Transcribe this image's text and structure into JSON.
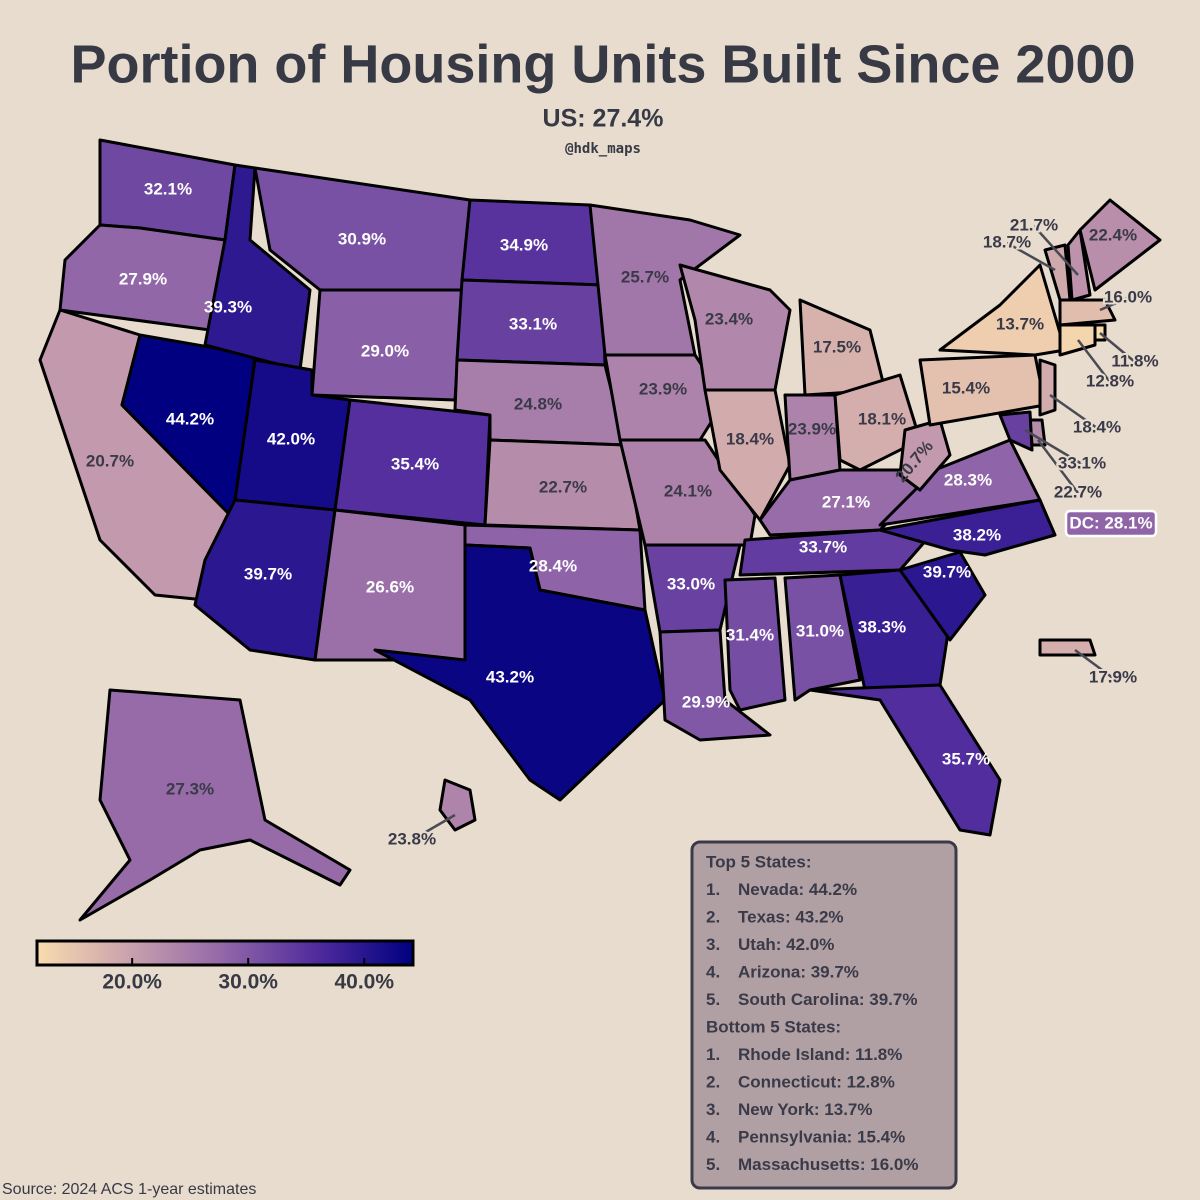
{
  "title": "Portion of Housing Units Built Since 2000",
  "subtitle": "US: 27.4%",
  "credit": "@hdk_maps",
  "source": "Source: 2024 ACS 1-year estimates",
  "colorbar": {
    "range": [
      11.8,
      44.2
    ],
    "colormap": [
      "#f9dcae",
      "#c9a0ad",
      "#9166a8",
      "#4e2a9c",
      "#000080"
    ],
    "ticks": [
      {
        "value": 20,
        "label": "20.0%"
      },
      {
        "value": 30,
        "label": "30.0%"
      },
      {
        "value": 40,
        "label": "40.0%"
      }
    ]
  },
  "states": [
    {
      "value": 32.1,
      "label": "32.1%"
    },
    {
      "value": 27.9,
      "label": "27.9%"
    },
    {
      "value": 20.7,
      "label": "20.7%"
    },
    {
      "value": 44.2,
      "label": "44.2%"
    },
    {
      "value": 39.3,
      "label": "39.3%"
    },
    {
      "value": 30.9,
      "label": "30.9%"
    },
    {
      "value": 29.0,
      "label": "29.0%"
    },
    {
      "value": 42.0,
      "label": "42.0%"
    },
    {
      "value": 35.4,
      "label": "35.4%"
    },
    {
      "value": 39.7,
      "label": "39.7%"
    },
    {
      "value": 26.6,
      "label": "26.6%"
    },
    {
      "value": 34.9,
      "label": "34.9%"
    },
    {
      "value": 33.1,
      "label": "33.1%"
    },
    {
      "value": 24.8,
      "label": "24.8%"
    },
    {
      "value": 22.7,
      "label": "22.7%"
    },
    {
      "value": 28.4,
      "label": "28.4%"
    },
    {
      "value": 43.2,
      "label": "43.2%"
    },
    {
      "value": 25.7,
      "label": "25.7%"
    },
    {
      "value": 23.9,
      "label": "23.9%"
    },
    {
      "value": 24.1,
      "label": "24.1%"
    },
    {
      "value": 33.0,
      "label": "33.0%"
    },
    {
      "value": 29.9,
      "label": "29.9%"
    },
    {
      "value": 23.4,
      "label": "23.4%"
    },
    {
      "value": 18.4,
      "label": "18.4%"
    },
    {
      "value": 17.5,
      "label": "17.5%"
    },
    {
      "value": 23.9,
      "label": "23.9%"
    },
    {
      "value": 18.1,
      "label": "18.1%"
    },
    {
      "value": 27.1,
      "label": "27.1%"
    },
    {
      "value": 33.7,
      "label": "33.7%"
    },
    {
      "value": 31.4,
      "label": "31.4%"
    },
    {
      "value": 31.0,
      "label": "31.0%"
    },
    {
      "value": 38.3,
      "label": "38.3%"
    },
    {
      "value": 35.7,
      "label": "35.7%"
    },
    {
      "value": 39.7,
      "label": "39.7%"
    },
    {
      "value": 38.2,
      "label": "38.2%"
    },
    {
      "value": 28.3,
      "label": "28.3%"
    },
    {
      "value": 20.7,
      "label": "20.7%"
    },
    {
      "value": 15.4,
      "label": "15.4%"
    },
    {
      "value": 13.7,
      "label": "13.7%"
    },
    {
      "value": 18.7,
      "label": "18.7%"
    },
    {
      "value": 21.7,
      "label": "21.7%"
    },
    {
      "value": 22.4,
      "label": "22.4%"
    },
    {
      "value": 16.0,
      "label": "16.0%"
    },
    {
      "value": 11.8,
      "label": "11.8%"
    },
    {
      "value": 12.8,
      "label": "12.8%"
    },
    {
      "value": 18.4,
      "label": "18.4%"
    },
    {
      "value": 22.7,
      "label": "22.7%"
    },
    {
      "value": 33.1,
      "label": "33.1%"
    },
    {
      "value": 27.3,
      "label": "27.3%"
    },
    {
      "value": 23.8,
      "label": "23.8%"
    },
    {
      "value": 17.9,
      "label": "17.9%"
    }
  ],
  "dc": {
    "value": 28.1,
    "label": "DC: 28.1%"
  },
  "top": {
    "heading": "Top 5 States:",
    "items": [
      {
        "rank": "1.",
        "text": "Nevada: 44.2%"
      },
      {
        "rank": "2.",
        "text": "Texas: 43.2%"
      },
      {
        "rank": "3.",
        "text": "Utah: 42.0%"
      },
      {
        "rank": "4.",
        "text": "Arizona: 39.7%"
      },
      {
        "rank": "5.",
        "text": "South Carolina: 39.7%"
      }
    ]
  },
  "bottom": {
    "heading": "Bottom 5 States:",
    "items": [
      {
        "rank": "1.",
        "text": "Rhode Island: 11.8%"
      },
      {
        "rank": "2.",
        "text": "Connecticut: 12.8%"
      },
      {
        "rank": "3.",
        "text": "New York: 13.7%"
      },
      {
        "rank": "4.",
        "text": "Pennsylvania: 15.4%"
      },
      {
        "rank": "5.",
        "text": "Massachusetts: 16.0%"
      }
    ]
  }
}
